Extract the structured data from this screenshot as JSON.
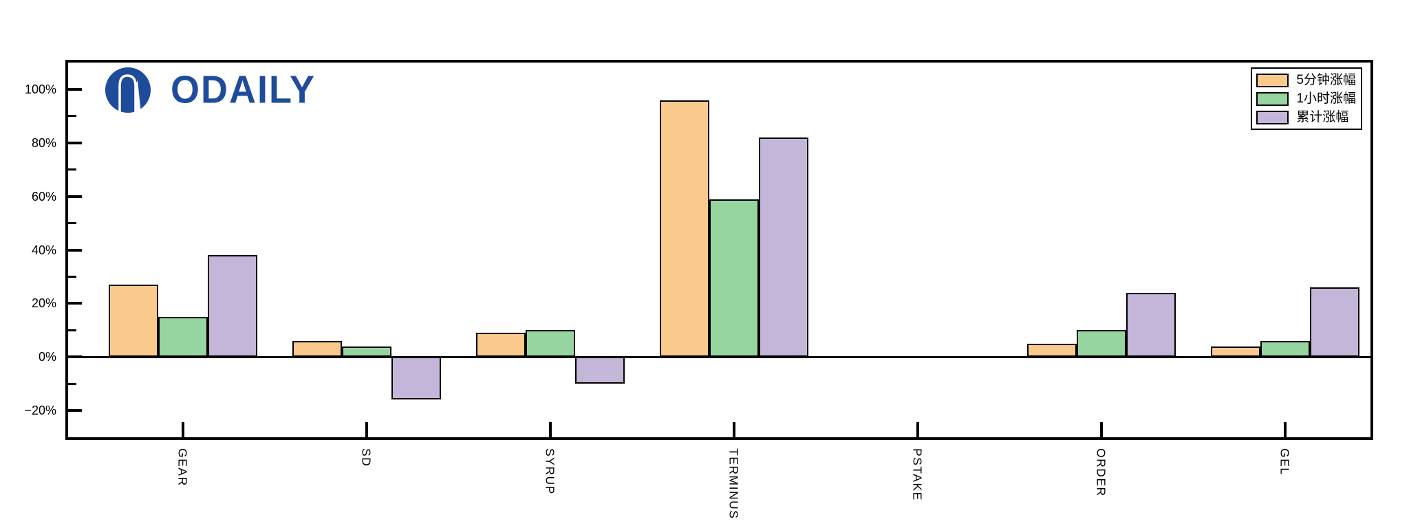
{
  "logo": {
    "text": "ODAILY",
    "color": "#1E4C9B"
  },
  "legend": {
    "items": [
      {
        "label": "5分钟涨幅",
        "color": "#FAC98C"
      },
      {
        "label": "1小时涨幅",
        "color": "#96D5A0"
      },
      {
        "label": "累计涨幅",
        "color": "#C4B6D9"
      }
    ]
  },
  "chart_data": {
    "type": "bar",
    "title": "",
    "xlabel": "",
    "ylabel": "",
    "categories": [
      "GEAR",
      "SD",
      "SYRUP",
      "TERMINUS",
      "PSTAKE",
      "ORDER",
      "GEL"
    ],
    "series": [
      {
        "name": "5分钟涨幅",
        "color": "#FAC98C",
        "values": [
          27,
          6,
          9,
          96,
          0,
          5,
          4
        ]
      },
      {
        "name": "1小时涨幅",
        "color": "#96D5A0",
        "values": [
          15,
          4,
          10,
          59,
          0,
          10,
          6
        ]
      },
      {
        "name": "累计涨幅",
        "color": "#C4B6D9",
        "values": [
          38,
          -16,
          -10,
          82,
          0,
          24,
          26
        ]
      }
    ],
    "ylim": [
      -30,
      110
    ],
    "yticks_major": [
      100,
      80,
      60,
      40,
      20,
      0,
      -20
    ],
    "ytick_labels": [
      "100%",
      "80%",
      "60%",
      "40%",
      "20%",
      "0%",
      "−20%"
    ],
    "yticks_minor": [
      90,
      70,
      50,
      30,
      10,
      -10
    ],
    "bar_edge_color": "#000000",
    "legend_position": "upper-right",
    "grid": false
  }
}
